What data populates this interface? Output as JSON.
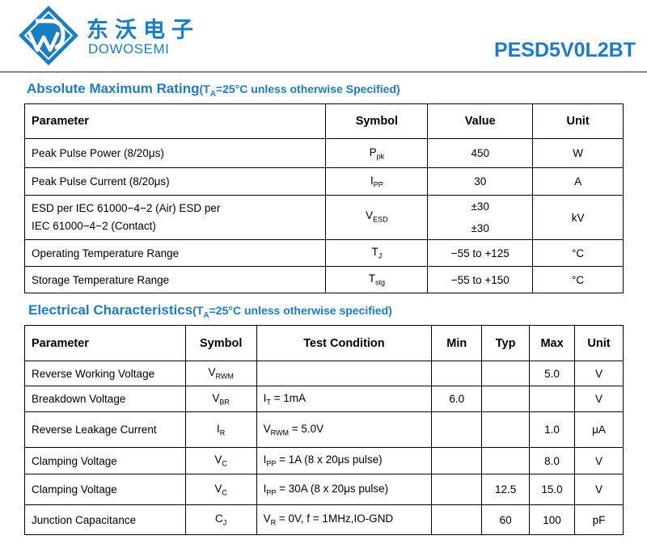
{
  "header": {
    "brand_cn": "东沃电子",
    "brand_en": "DOWOSEMI",
    "part_number": "PESD5V0L2BT"
  },
  "colors": {
    "accent": "#1e7cc5",
    "logo_blue": "#1a7ec2"
  },
  "amr": {
    "title": "Absolute Maximum Rating",
    "condition_pre": "(T",
    "condition_sub": "A",
    "condition_post": "=25°C unless otherwise Specified)",
    "headers": {
      "parameter": "Parameter",
      "symbol": "Symbol",
      "value": "Value",
      "unit": "Unit"
    },
    "rows": [
      {
        "parameter": "Peak Pulse Power (8/20μs)",
        "sym": "P",
        "sym_sub": "pk",
        "value": "450",
        "unit": "W"
      },
      {
        "parameter": "Peak Pulse Current (8/20μs)",
        "sym": "I",
        "sym_sub": "PP",
        "value": "30",
        "unit": "A"
      },
      {
        "parameter_line1": "ESD per IEC 61000−4−2 (Air) ESD per",
        "parameter_line2": "IEC 61000−4−2 (Contact)",
        "sym": "V",
        "sym_sub": "ESD",
        "value_line1": "±30",
        "value_line2": "±30",
        "unit": "kV"
      },
      {
        "parameter": "Operating Temperature Range",
        "sym": "T",
        "sym_sub": "J",
        "value": "−55 to +125",
        "unit": "°C"
      },
      {
        "parameter": "Storage Temperature Range",
        "sym": "T",
        "sym_sub": "stg",
        "value": "−55 to +150",
        "unit": "°C"
      }
    ]
  },
  "ec": {
    "title": "Electrical Characteristics",
    "condition_pre": "(T",
    "condition_sub": "A",
    "condition_post": "=25°C unless otherwise specified)",
    "headers": {
      "parameter": "Parameter",
      "symbol": "Symbol",
      "test_condition": "Test Condition",
      "min": "Min",
      "typ": "Typ",
      "max": "Max",
      "unit": "Unit"
    },
    "rows": [
      {
        "parameter": "Reverse Working Voltage",
        "sym": "V",
        "sym_sub": "RWM",
        "tc_pre": "",
        "tc_sub": "",
        "tc_post": "",
        "min": "",
        "typ": "",
        "max": "5.0",
        "unit": "V"
      },
      {
        "parameter": "Breakdown Voltage",
        "sym": "V",
        "sym_sub": "BR",
        "tc_pre": "I",
        "tc_sub": "T",
        "tc_post": " = 1mA",
        "min": "6.0",
        "typ": "",
        "max": "",
        "unit": "V"
      },
      {
        "parameter": "Reverse Leakage Current",
        "sym": "I",
        "sym_sub": "R",
        "tc_pre": "V",
        "tc_sub": "RWM",
        "tc_post": " = 5.0V",
        "min": "",
        "typ": "",
        "max": "1.0",
        "unit": "μA"
      },
      {
        "parameter": "Clamping Voltage",
        "sym": "V",
        "sym_sub": "C",
        "tc_pre": "I",
        "tc_sub": "PP",
        "tc_post": " = 1A (8 x 20μs pulse)",
        "min": "",
        "typ": "",
        "max": "8.0",
        "unit": "V"
      },
      {
        "parameter": "Clamping Voltage",
        "sym": "V",
        "sym_sub": "C",
        "tc_pre": "I",
        "tc_sub": "PP",
        "tc_post": " = 30A (8 x 20μs pulse)",
        "min": "",
        "typ": "12.5",
        "max": "15.0",
        "unit": "V"
      },
      {
        "parameter": "Junction Capacitance",
        "sym": "C",
        "sym_sub": "J",
        "tc_pre": "V",
        "tc_sub": "R",
        "tc_post": " = 0V, f = 1MHz,IO-GND",
        "min": "",
        "typ": "60",
        "max": "100",
        "unit": "pF"
      }
    ]
  }
}
